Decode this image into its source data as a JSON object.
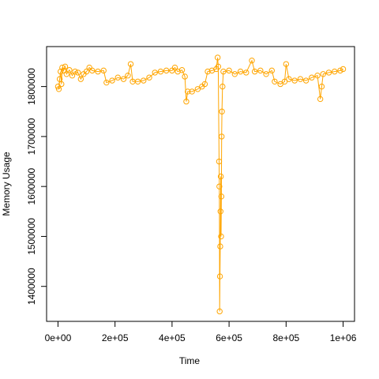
{
  "chart_data": {
    "type": "scatter-line",
    "x_label": "Time",
    "y_label": "Memory Usage",
    "color": "#FFA500",
    "xlim": [
      -40000,
      1040000
    ],
    "xticks": [
      {
        "value": 0,
        "label": "0e+00"
      },
      {
        "value": 200000,
        "label": "2e+05"
      },
      {
        "value": 400000,
        "label": "4e+05"
      },
      {
        "value": 600000,
        "label": "6e+05"
      },
      {
        "value": 800000,
        "label": "8e+05"
      },
      {
        "value": 1000000,
        "label": "1e+06"
      }
    ],
    "ylim": [
      1330000,
      1880000
    ],
    "yticks": [
      1400000,
      1500000,
      1600000,
      1700000,
      1800000
    ],
    "x": [
      0,
      3000,
      6000,
      9000,
      12000,
      15000,
      20000,
      25000,
      30000,
      40000,
      50000,
      60000,
      70000,
      80000,
      90000,
      100000,
      110000,
      120000,
      140000,
      160000,
      170000,
      190000,
      210000,
      230000,
      245000,
      255000,
      262000,
      280000,
      300000,
      320000,
      340000,
      360000,
      380000,
      400000,
      410000,
      420000,
      435000,
      445000,
      450000,
      455000,
      470000,
      490000,
      505000,
      515000,
      525000,
      540000,
      555000,
      560000,
      562000,
      565000,
      566000,
      567000,
      568000,
      569000,
      570000,
      571000,
      572000,
      573000,
      574000,
      575000,
      577000,
      580000,
      600000,
      620000,
      640000,
      660000,
      680000,
      690000,
      710000,
      730000,
      750000,
      760000,
      780000,
      795000,
      800000,
      810000,
      830000,
      850000,
      870000,
      890000,
      910000,
      920000,
      925000,
      930000,
      950000,
      970000,
      990000,
      1000000
    ],
    "values": [
      1800000,
      1795000,
      1815000,
      1830000,
      1805000,
      1838000,
      1832000,
      1840000,
      1825000,
      1833000,
      1822000,
      1830000,
      1828000,
      1815000,
      1825000,
      1830000,
      1838000,
      1832000,
      1830000,
      1832000,
      1808000,
      1812000,
      1818000,
      1815000,
      1822000,
      1845000,
      1810000,
      1810000,
      1812000,
      1818000,
      1828000,
      1830000,
      1832000,
      1832000,
      1838000,
      1830000,
      1833000,
      1820000,
      1770000,
      1790000,
      1790000,
      1795000,
      1800000,
      1805000,
      1830000,
      1832000,
      1835000,
      1858000,
      1840000,
      1650000,
      1600000,
      1350000,
      1420000,
      1480000,
      1550000,
      1620000,
      1500000,
      1580000,
      1700000,
      1750000,
      1800000,
      1830000,
      1832000,
      1825000,
      1830000,
      1828000,
      1852000,
      1830000,
      1832000,
      1825000,
      1832000,
      1810000,
      1805000,
      1810000,
      1845000,
      1815000,
      1812000,
      1815000,
      1812000,
      1818000,
      1822000,
      1775000,
      1800000,
      1825000,
      1828000,
      1830000,
      1832000,
      1835000
    ]
  }
}
